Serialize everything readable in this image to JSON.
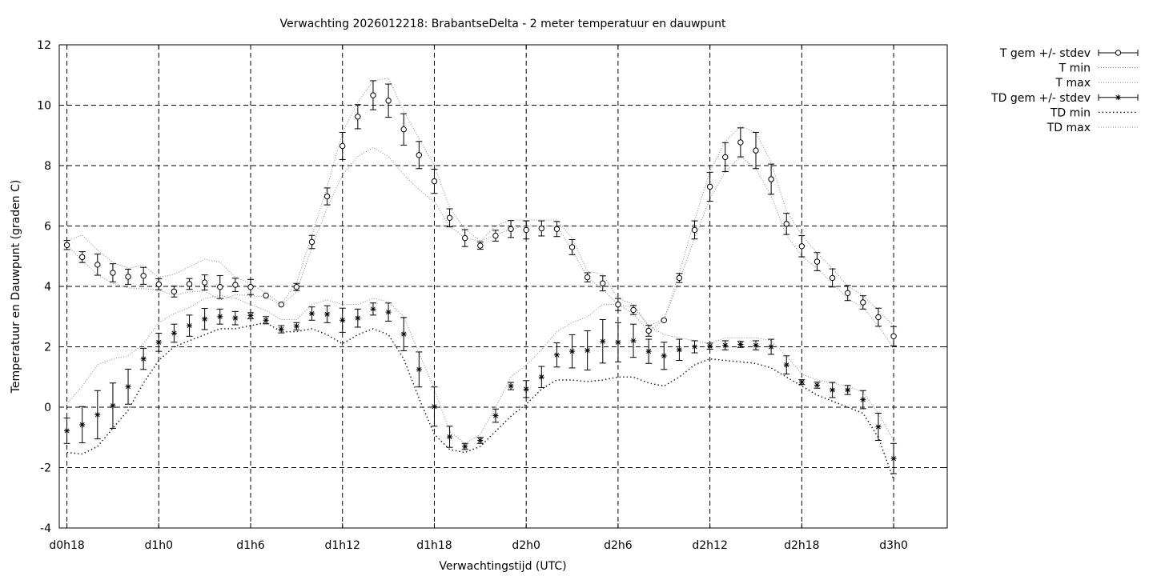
{
  "chart_data": {
    "type": "line",
    "title": "Verwachting 2026012218: BrabantseDelta - 2 meter temperatuur en dauwpunt",
    "xlabel": "Verwachtingstijd (UTC)",
    "ylabel": "Temperatuur en Dauwpunt (graden C)",
    "ylim": [
      -4,
      12
    ],
    "xlim": [
      -0.5,
      57.5
    ],
    "grid": true,
    "legend_position": "right, outside",
    "x_tick_positions": [
      0,
      6,
      12,
      18,
      24,
      30,
      36,
      42,
      48,
      54
    ],
    "x_tick_labels": [
      "d0h18",
      "d1h0",
      "d1h6",
      "d1h12",
      "d1h18",
      "d2h0",
      "d2h6",
      "d2h12",
      "d2h18",
      "d3h0"
    ],
    "y_ticks": [
      -4,
      -2,
      0,
      2,
      4,
      6,
      8,
      10,
      12
    ],
    "x_hours_since_first": [
      0,
      1,
      2,
      3,
      4,
      5,
      6,
      7,
      8,
      9,
      10,
      11,
      12,
      13,
      14,
      15,
      16,
      17,
      18,
      19,
      20,
      21,
      22,
      23,
      24,
      25,
      26,
      27,
      28,
      29,
      30,
      31,
      32,
      33,
      34,
      35,
      36,
      37,
      38,
      39,
      40,
      41,
      42,
      43,
      44,
      45,
      46,
      47,
      48,
      49,
      50,
      51,
      52,
      53,
      54
    ],
    "series": [
      {
        "name": "T gem +/- stdev",
        "marker": "circle",
        "values": [
          5.37,
          4.97,
          4.72,
          4.45,
          4.32,
          4.35,
          4.07,
          3.83,
          4.08,
          4.13,
          3.98,
          4.05,
          3.98,
          3.7,
          3.4,
          3.98,
          5.47,
          6.98,
          8.65,
          9.62,
          10.33,
          10.15,
          9.2,
          8.35,
          7.48,
          6.27,
          5.6,
          5.35,
          5.68,
          5.9,
          5.87,
          5.92,
          5.9,
          5.3,
          4.3,
          4.1,
          3.4,
          3.22,
          2.53,
          2.88,
          4.28,
          5.87,
          7.3,
          8.28,
          8.77,
          8.5,
          7.55,
          6.07,
          5.33,
          4.82,
          4.28,
          3.78,
          3.47,
          2.98,
          2.35
        ],
        "stdev": [
          0.15,
          0.18,
          0.35,
          0.3,
          0.25,
          0.28,
          0.18,
          0.18,
          0.18,
          0.25,
          0.38,
          0.22,
          0.25,
          0.0,
          0.0,
          0.12,
          0.22,
          0.28,
          0.45,
          0.4,
          0.48,
          0.55,
          0.52,
          0.45,
          0.4,
          0.3,
          0.28,
          0.12,
          0.18,
          0.28,
          0.3,
          0.25,
          0.25,
          0.25,
          0.15,
          0.25,
          0.2,
          0.15,
          0.18,
          0.0,
          0.15,
          0.3,
          0.48,
          0.48,
          0.48,
          0.6,
          0.5,
          0.35,
          0.35,
          0.3,
          0.3,
          0.25,
          0.22,
          0.3,
          0.32
        ]
      },
      {
        "name": "T min",
        "style": "dotted",
        "values": [
          5.37,
          4.85,
          4.4,
          4.1,
          3.95,
          3.92,
          3.88,
          3.7,
          3.82,
          3.85,
          3.55,
          3.72,
          3.7,
          3.65,
          3.38,
          3.82,
          5.3,
          6.6,
          7.7,
          8.3,
          8.6,
          8.3,
          7.7,
          7.2,
          6.8,
          6.0,
          5.6,
          5.5,
          5.7,
          5.9,
          6.0,
          6.0,
          6.0,
          5.2,
          4.3,
          3.9,
          3.4,
          3.1,
          2.5,
          2.9,
          4.2,
          5.6,
          6.9,
          7.8,
          8.3,
          7.9,
          7.0,
          5.7,
          5.0,
          4.6,
          4.1,
          3.6,
          3.3,
          2.7,
          1.95
        ]
      },
      {
        "name": "T max",
        "style": "dotted",
        "values": [
          5.5,
          5.7,
          5.2,
          4.8,
          4.6,
          4.7,
          4.3,
          4.4,
          4.65,
          4.9,
          4.8,
          4.3,
          4.1,
          3.78,
          3.42,
          4.12,
          5.7,
          7.3,
          9.1,
          10.1,
          10.8,
          10.9,
          9.8,
          8.9,
          8.0,
          6.6,
          5.9,
          5.5,
          6.0,
          6.2,
          6.2,
          6.2,
          6.2,
          5.6,
          4.5,
          4.4,
          3.6,
          3.4,
          2.7,
          2.9,
          4.45,
          6.2,
          7.8,
          8.8,
          9.3,
          9.1,
          8.1,
          6.5,
          5.7,
          5.1,
          4.6,
          4.0,
          3.7,
          3.2,
          2.7
        ]
      },
      {
        "name": "TD gem +/- stdev",
        "marker": "star",
        "values": [
          -0.78,
          -0.58,
          -0.25,
          0.05,
          0.68,
          1.6,
          2.15,
          2.45,
          2.7,
          2.92,
          3.0,
          2.95,
          3.03,
          2.88,
          2.58,
          2.68,
          3.1,
          3.08,
          2.88,
          2.95,
          3.25,
          3.15,
          2.42,
          1.25,
          0.02,
          -0.98,
          -1.3,
          -1.1,
          -0.28,
          0.7,
          0.6,
          1.0,
          1.73,
          1.85,
          1.88,
          2.18,
          2.15,
          2.2,
          1.85,
          1.7,
          1.9,
          2.0,
          2.02,
          2.05,
          2.08,
          2.05,
          2.0,
          1.4,
          0.83,
          0.73,
          0.57,
          0.57,
          0.25,
          -0.65,
          -1.7
        ]
      },
      {
        "name": "TD min",
        "style": "dotted",
        "values": [
          -1.5,
          -1.55,
          -1.3,
          -0.7,
          -0.1,
          0.8,
          1.55,
          2.0,
          2.2,
          2.4,
          2.6,
          2.6,
          2.7,
          2.8,
          2.5,
          2.5,
          2.6,
          2.4,
          2.1,
          2.4,
          2.6,
          2.4,
          1.6,
          0.3,
          -0.9,
          -1.4,
          -1.5,
          -1.3,
          -0.8,
          -0.3,
          0.1,
          0.6,
          0.9,
          0.9,
          0.85,
          0.9,
          1.0,
          1.0,
          0.8,
          0.7,
          1.0,
          1.4,
          1.6,
          1.55,
          1.5,
          1.45,
          1.3,
          1.0,
          0.7,
          0.4,
          0.2,
          0.0,
          -0.2,
          -1.0,
          -2.4
        ]
      },
      {
        "name": "TD max",
        "style": "dotted",
        "values": [
          0.1,
          0.7,
          1.4,
          1.6,
          1.7,
          2.1,
          2.8,
          3.1,
          3.3,
          3.6,
          3.7,
          3.6,
          3.4,
          3.2,
          2.9,
          2.9,
          3.4,
          3.55,
          3.4,
          3.4,
          3.6,
          3.5,
          3.0,
          1.8,
          0.6,
          -0.8,
          -1.2,
          -0.9,
          0.0,
          1.0,
          1.4,
          1.9,
          2.5,
          2.8,
          3.0,
          3.4,
          3.4,
          3.3,
          2.7,
          2.4,
          2.3,
          2.2,
          2.1,
          2.3,
          2.3,
          2.3,
          2.2,
          1.7,
          1.1,
          0.9,
          0.8,
          0.7,
          0.5,
          -0.2,
          -1.1
        ]
      }
    ],
    "td_stdev": [
      0.42,
      0.6,
      0.8,
      0.75,
      0.58,
      0.35,
      0.3,
      0.3,
      0.35,
      0.35,
      0.25,
      0.22,
      0.1,
      0.12,
      0.12,
      0.12,
      0.22,
      0.28,
      0.4,
      0.3,
      0.2,
      0.3,
      0.55,
      0.58,
      0.65,
      0.35,
      0.1,
      0.1,
      0.22,
      0.12,
      0.28,
      0.35,
      0.4,
      0.55,
      0.65,
      0.72,
      0.65,
      0.55,
      0.4,
      0.45,
      0.35,
      0.2,
      0.1,
      0.15,
      0.1,
      0.15,
      0.25,
      0.3,
      0.08,
      0.1,
      0.25,
      0.15,
      0.3,
      0.45,
      0.5
    ]
  }
}
